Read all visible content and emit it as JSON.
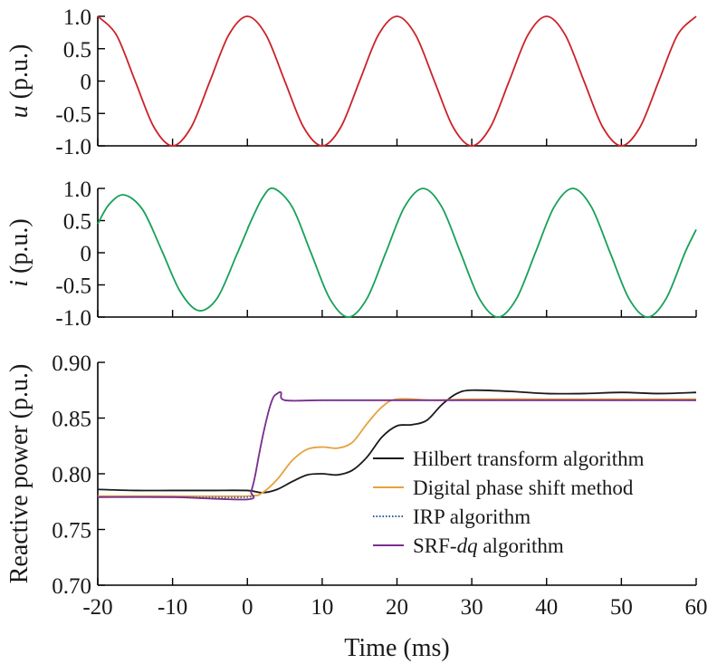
{
  "colors": {
    "voltage": "#cc2229",
    "current": "#17a05a",
    "hilbert": "#1a1a1a",
    "digital_phase_shift": "#e6a23c",
    "irp": "#2b5b93",
    "srf_dq": "#7b2f8e"
  },
  "chart_data": [
    {
      "type": "line",
      "ylabel_var": "u",
      "ylabel_unit": " (p.u.)",
      "xlim": [
        -20,
        60
      ],
      "ylim": [
        -1.0,
        1.0
      ],
      "yticks": [
        -1.0,
        -0.5,
        0,
        0.5,
        1.0
      ],
      "ytick_labels": [
        "-1.0",
        "-0.5",
        "0",
        "0.5",
        "1.0"
      ],
      "xtick_labels_shown": false,
      "series": [
        {
          "color_key": "voltage",
          "style": "solid",
          "x": [
            -20,
            -17.5,
            -15,
            -12.5,
            -10,
            -7.5,
            -5,
            -2.5,
            0,
            2.5,
            5,
            7.5,
            10,
            12.5,
            15,
            17.5,
            20,
            22.5,
            25,
            27.5,
            30,
            32.5,
            35,
            37.5,
            40,
            42.5,
            45,
            47.5,
            50,
            52.5,
            55,
            57.5,
            60
          ],
          "y": [
            1.0,
            0.71,
            0.0,
            -0.71,
            -1.0,
            -0.71,
            0.0,
            0.71,
            1.0,
            0.71,
            0.0,
            -0.71,
            -1.0,
            -0.71,
            0.0,
            0.71,
            1.0,
            0.71,
            0.0,
            -0.71,
            -1.0,
            -0.71,
            0.0,
            0.71,
            1.0,
            0.71,
            0.0,
            -0.71,
            -1.0,
            -0.71,
            0.0,
            0.71,
            1.0
          ]
        }
      ]
    },
    {
      "type": "line",
      "ylabel_var": "i",
      "ylabel_unit": " (p.u.)",
      "xlim": [
        -20,
        60
      ],
      "ylim": [
        -1.0,
        1.0
      ],
      "yticks": [
        -1.0,
        -0.5,
        0,
        0.5,
        1.0
      ],
      "ytick_labels": [
        "-1.0",
        "-0.5",
        "0",
        "0.5",
        "1.0"
      ],
      "xtick_labels_shown": false,
      "series": [
        {
          "color_key": "current",
          "style": "solid",
          "x": [
            -20,
            -18.5,
            -16.5,
            -14,
            -11.5,
            -9,
            -6.5,
            -4,
            -1.5,
            0,
            0.2,
            2,
            3.5,
            6,
            8.5,
            11,
            13.5,
            16,
            18.5,
            21,
            23.5,
            26,
            28.5,
            31,
            33.5,
            36,
            38.5,
            41,
            43.5,
            46,
            48.5,
            51,
            53.5,
            56,
            58.5,
            60
          ],
          "y": [
            0.45,
            0.75,
            0.9,
            0.67,
            0.05,
            -0.6,
            -0.9,
            -0.7,
            -0.05,
            0.36,
            0.42,
            0.85,
            1.0,
            0.71,
            0.0,
            -0.71,
            -1.0,
            -0.71,
            0.0,
            0.71,
            1.0,
            0.71,
            0.0,
            -0.71,
            -1.0,
            -0.71,
            0.0,
            0.71,
            1.0,
            0.71,
            0.0,
            -0.71,
            -1.0,
            -0.71,
            0.0,
            0.36
          ]
        }
      ]
    },
    {
      "type": "line",
      "ylabel": "Reactive power (p.u.)",
      "xlabel": "Time (ms)",
      "xlim": [
        -20,
        60
      ],
      "ylim": [
        0.7,
        0.9
      ],
      "xticks": [
        -20,
        -10,
        0,
        10,
        20,
        30,
        40,
        50,
        60
      ],
      "xtick_labels": [
        "-20",
        "-10",
        "0",
        "10",
        "20",
        "30",
        "40",
        "50",
        "60"
      ],
      "yticks": [
        0.7,
        0.75,
        0.8,
        0.85,
        0.9
      ],
      "ytick_labels": [
        "0.70",
        "0.75",
        "0.80",
        "0.85",
        "0.90"
      ],
      "legend_position": "right",
      "series": [
        {
          "name": "Hilbert transform algorithm",
          "color_key": "hilbert",
          "style": "solid",
          "x": [
            -20,
            -15,
            -10,
            -5,
            0,
            2,
            4,
            6,
            8,
            10,
            12,
            14,
            16,
            18,
            20,
            22,
            24,
            26,
            28,
            30,
            35,
            40,
            45,
            50,
            55,
            60
          ],
          "y": [
            0.786,
            0.785,
            0.785,
            0.785,
            0.785,
            0.783,
            0.786,
            0.793,
            0.799,
            0.8,
            0.799,
            0.803,
            0.815,
            0.833,
            0.843,
            0.844,
            0.848,
            0.862,
            0.872,
            0.875,
            0.874,
            0.872,
            0.872,
            0.873,
            0.872,
            0.873
          ]
        },
        {
          "name": "Digital phase shift method",
          "color_key": "digital_phase_shift",
          "style": "solid",
          "x": [
            -20,
            -10,
            0,
            2,
            4,
            6,
            8,
            10,
            12,
            14,
            16,
            18,
            20,
            25,
            30,
            40,
            50,
            60
          ],
          "y": [
            0.78,
            0.78,
            0.78,
            0.783,
            0.795,
            0.812,
            0.822,
            0.824,
            0.823,
            0.828,
            0.845,
            0.86,
            0.867,
            0.866,
            0.867,
            0.867,
            0.867,
            0.867
          ]
        },
        {
          "name": "IRP algorithm",
          "color_key": "irp",
          "style": "dotted",
          "x": [
            -20,
            -10,
            0,
            0.5,
            1,
            1.5,
            2,
            2.5,
            3,
            3.5,
            4,
            4.5,
            5,
            10,
            20,
            30,
            40,
            50,
            60
          ],
          "y": [
            0.779,
            0.779,
            0.779,
            0.784,
            0.797,
            0.815,
            0.832,
            0.847,
            0.86,
            0.869,
            0.872,
            0.873,
            0.866,
            0.866,
            0.866,
            0.866,
            0.866,
            0.866,
            0.866
          ]
        },
        {
          "name": "SRF-",
          "name_italic": "dq",
          "name_suffix": " algorithm",
          "color_key": "srf_dq",
          "style": "solid",
          "x": [
            -20,
            -10,
            0,
            0.5,
            1,
            1.5,
            2,
            2.5,
            3,
            3.5,
            4,
            4.5,
            5,
            10,
            20,
            30,
            40,
            50,
            60
          ],
          "y": [
            0.779,
            0.779,
            0.777,
            0.784,
            0.797,
            0.815,
            0.832,
            0.847,
            0.86,
            0.869,
            0.872,
            0.873,
            0.866,
            0.866,
            0.866,
            0.866,
            0.866,
            0.866,
            0.866
          ]
        }
      ]
    }
  ]
}
